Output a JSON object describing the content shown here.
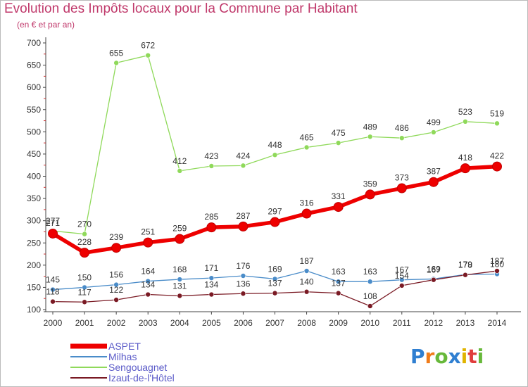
{
  "header": {
    "title": "Evolution des Impôts locaux pour la Commune par Habitant",
    "subtitle": "(en € et par an)"
  },
  "logo": {
    "text": "Proxiti"
  },
  "colors": {
    "title": "#c0396b",
    "ASPET": "#ee0000",
    "Milhas": "#4a8cc9",
    "Sengouagnet": "#8fd95a",
    "Izaut-de-l'Hôtel": "#7a1a24"
  },
  "chart_data": {
    "type": "line",
    "title": "Evolution des Impôts locaux pour la Commune par Habitant",
    "subtitle": "(en € et par an)",
    "x": [
      "2000",
      "2001",
      "2002",
      "2003",
      "2004",
      "2005",
      "2006",
      "2007",
      "2008",
      "2009",
      "2010",
      "2011",
      "2012",
      "2013",
      "2014"
    ],
    "ylim": [
      100,
      700
    ],
    "yticks": [
      100,
      150,
      200,
      250,
      300,
      350,
      400,
      450,
      500,
      550,
      600,
      650,
      700
    ],
    "grid": false,
    "legend_position": "bottom-left",
    "series": [
      {
        "name": "ASPET",
        "color": "#ee0000",
        "values": [
          271,
          228,
          239,
          251,
          259,
          285,
          287,
          297,
          316,
          331,
          359,
          373,
          387,
          418,
          422
        ]
      },
      {
        "name": "Milhas",
        "color": "#4a8cc9",
        "values": [
          145,
          150,
          156,
          164,
          168,
          171,
          176,
          169,
          187,
          163,
          163,
          167,
          169,
          179,
          180
        ]
      },
      {
        "name": "Sengouagnet",
        "color": "#8fd95a",
        "values": [
          277,
          270,
          655,
          672,
          412,
          423,
          424,
          448,
          465,
          475,
          489,
          486,
          499,
          523,
          519
        ]
      },
      {
        "name": "Izaut-de-l'Hôtel",
        "color": "#7a1a24",
        "values": [
          118,
          117,
          122,
          134,
          131,
          134,
          136,
          137,
          140,
          137,
          108,
          154,
          167,
          178,
          187
        ]
      }
    ]
  }
}
